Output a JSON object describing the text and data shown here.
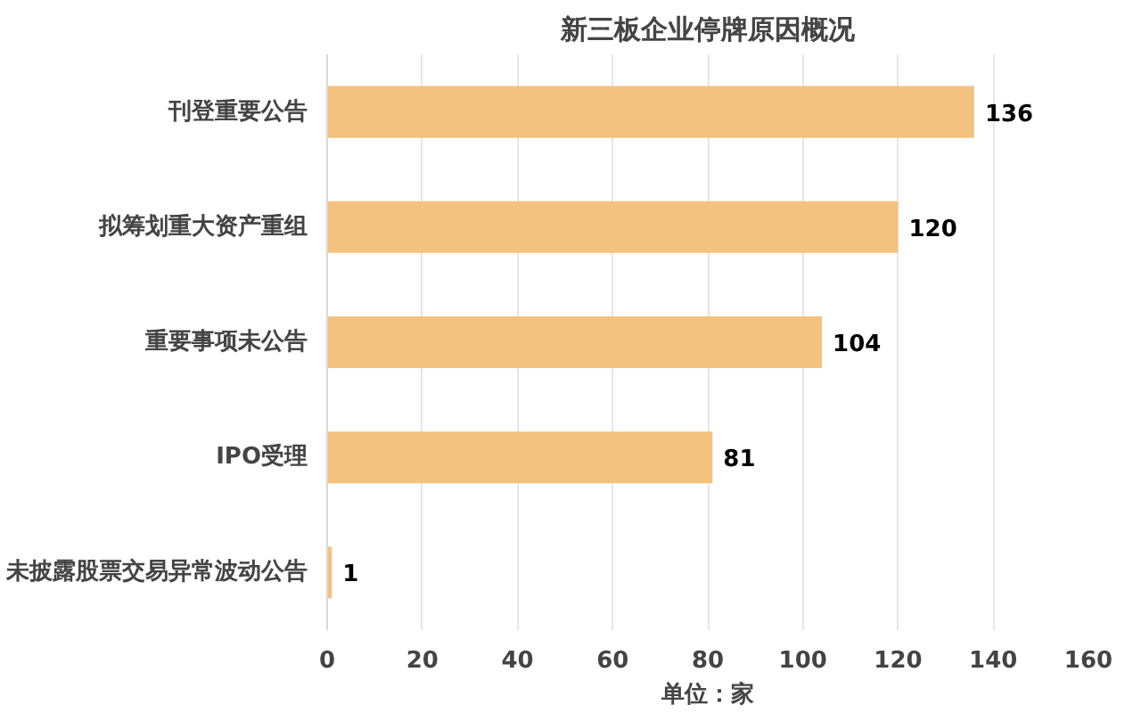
{
  "chart_data": {
    "type": "bar",
    "orientation": "horizontal",
    "title": "新三板企业停牌原因概况",
    "xlabel": "单位：家",
    "categories": [
      "刊登重要公告",
      "拟筹划重大资产重组",
      "重要事项未公告",
      "IPO受理",
      "未披露股票交易异常波动公告"
    ],
    "values": [
      136,
      120,
      104,
      81,
      1
    ],
    "color": "#f4c27f",
    "xlim": [
      0,
      160
    ],
    "xticks": [
      0,
      20,
      40,
      60,
      80,
      100,
      120,
      140,
      160
    ],
    "grid": "x",
    "data_labels": true
  }
}
